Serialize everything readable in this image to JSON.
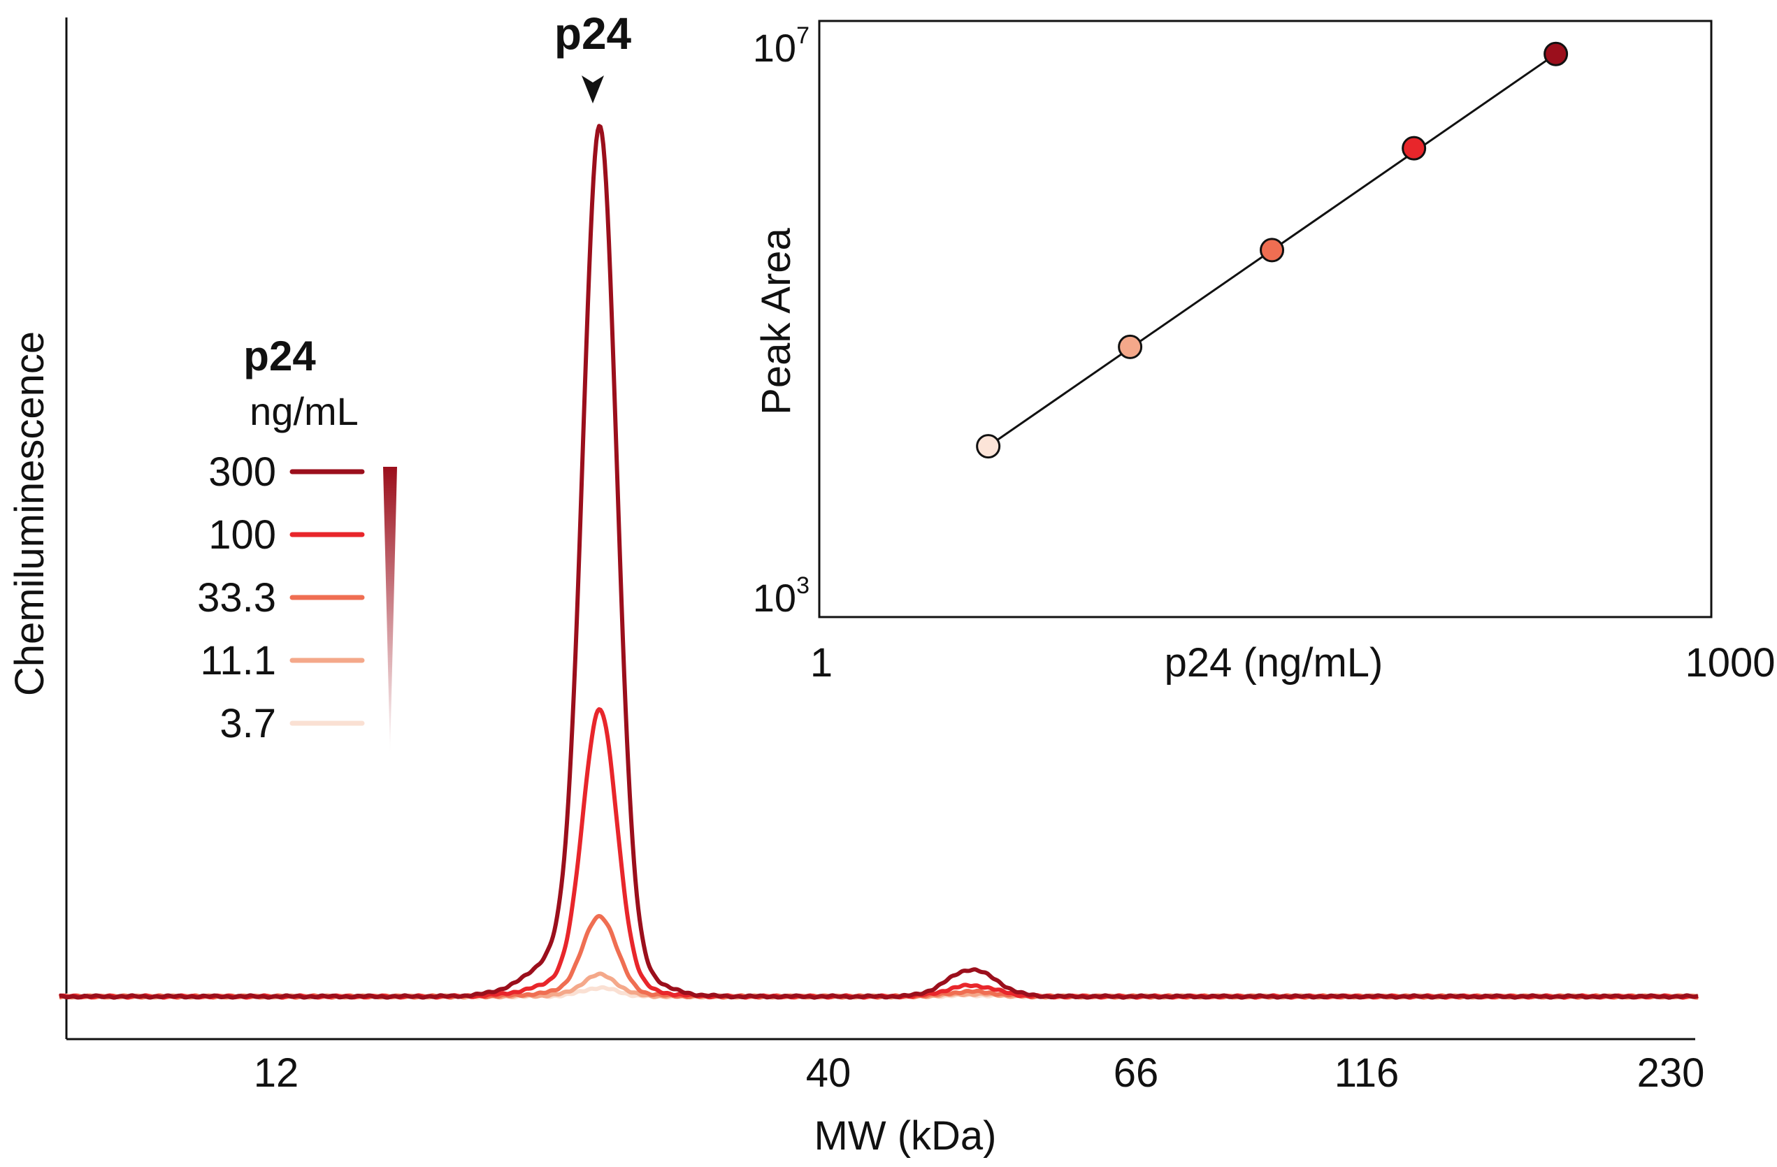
{
  "chart_data": [
    {
      "type": "line",
      "title": "",
      "xlabel": "MW (kDa)",
      "ylabel": "Chemiluminescence",
      "x_ticks": [
        "12",
        "40",
        "66",
        "116",
        "230"
      ],
      "peak_annotation": "p24",
      "legend": {
        "title": "p24",
        "subtitle": "ng/mL",
        "placement": "left",
        "entries": [
          "300",
          "100",
          "33.3",
          "11.1",
          "3.7"
        ]
      },
      "series": [
        {
          "name": "300",
          "color": "#9b0f1c",
          "main_peak": 1.0,
          "second_peak": 0.022
        },
        {
          "name": "100",
          "color": "#e8262b",
          "main_peak": 0.33,
          "second_peak": 0.009
        },
        {
          "name": "33.3",
          "color": "#ef6e52",
          "main_peak": 0.092,
          "second_peak": 0.004
        },
        {
          "name": "11.1",
          "color": "#f4a88a",
          "main_peak": 0.025,
          "second_peak": 0.002
        },
        {
          "name": "3.7",
          "color": "#fae0d3",
          "main_peak": 0.01,
          "second_peak": 0.001
        }
      ],
      "grid": false
    },
    {
      "type": "scatter",
      "title": "",
      "xlabel": "p24 (ng/mL)",
      "ylabel": "Peak Area",
      "x_scale": "log",
      "y_scale": "log",
      "xlim": [
        1,
        1000
      ],
      "ylim": [
        1000,
        10000000
      ],
      "x_tick_labels": [
        "1",
        "1000"
      ],
      "y_tick_labels": [
        {
          "base": "10",
          "exp": "7"
        },
        {
          "base": "10",
          "exp": "3"
        }
      ],
      "fit_line": true,
      "points": [
        {
          "x": 3.7,
          "y": 14000,
          "color": "#fce4d8"
        },
        {
          "x": 11.1,
          "y": 65000,
          "color": "#f4a88a"
        },
        {
          "x": 33.3,
          "y": 290000,
          "color": "#ef6e52"
        },
        {
          "x": 100,
          "y": 1400000,
          "color": "#e8262b"
        },
        {
          "x": 300,
          "y": 6000000,
          "color": "#9b0f1c"
        }
      ],
      "grid": false
    }
  ]
}
